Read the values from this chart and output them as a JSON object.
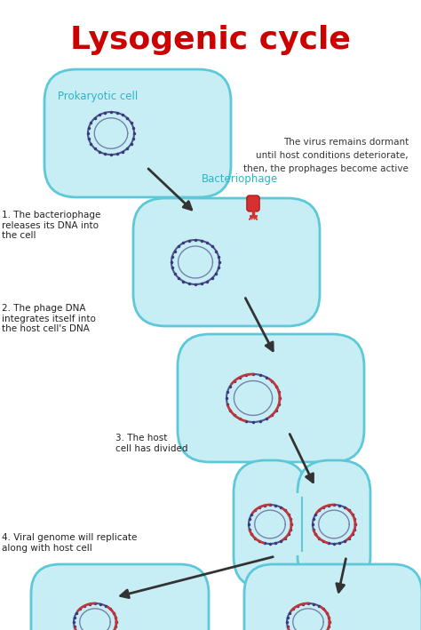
{
  "title": "Lysogenic cycle",
  "title_color": "#cc0000",
  "title_fontsize": 26,
  "background_color": "#ffffff",
  "cell_fill": "#c8eef5",
  "cell_fill_inner": "#d8f4fa",
  "cell_edge": "#5cc8d8",
  "cell_edge_width": 2.0,
  "dna_ring_color": "#3a3a7a",
  "dna_ring_color2": "#cc3333",
  "arrow_color": "#333333",
  "teal_label_color": "#2ab5c8",
  "labels": {
    "prokaryotic_cell": "Prokaryotic cell",
    "bacteriophage": "Bacteriophage",
    "step1": "1. The bacteriophage\nreleases its DNA into\nthe cell",
    "step2": "2. The phage DNA\nintegrates itself into\nthe host cell's DNA",
    "step3": "3. The host\ncell has divided",
    "step4": "4. Viral genome will replicate\nalong with host cell",
    "dormant": "The virus remains dormant\nuntil host conditions deteriorate,\nthen, the prophages become active"
  }
}
